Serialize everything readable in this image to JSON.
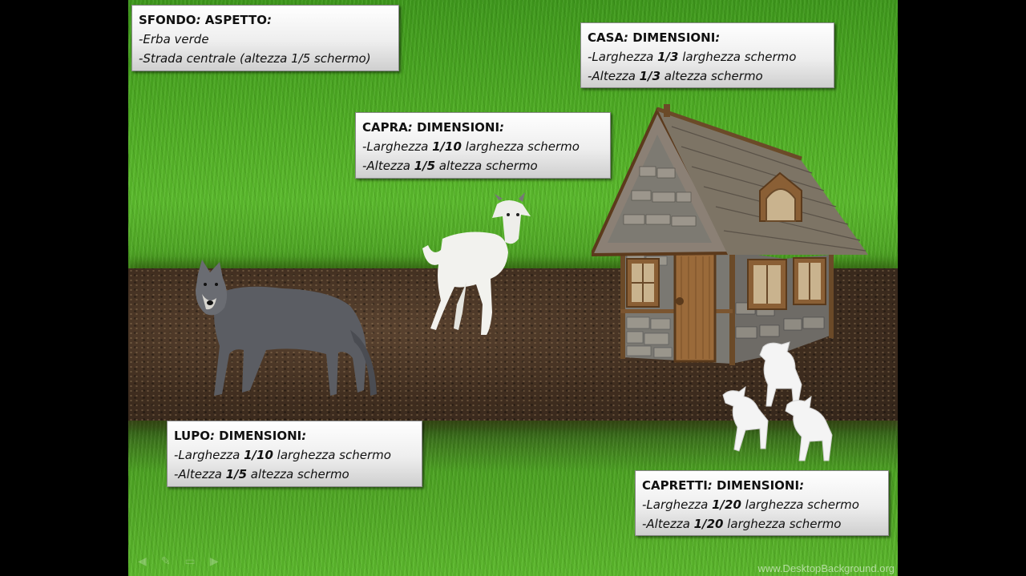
{
  "labels": {
    "sfondo": {
      "title_main": "SFONDO",
      "title_colon": ":",
      "title_rest": " ASPETTO",
      "title_end": ":",
      "line1": "-Erba verde",
      "line2": "-Strada centrale (altezza 1/5 schermo)"
    },
    "casa": {
      "title_main": "CASA",
      "title_colon": ":",
      "title_rest": " DIMENSIONI",
      "title_end": ":",
      "l1_pre": "-Larghezza ",
      "l1_val": "1/3",
      "l1_post": "  larghezza schermo",
      "l2_pre": "-Altezza ",
      "l2_val": "1/3",
      "l2_post": " altezza schermo"
    },
    "capra": {
      "title_main": "CAPRA",
      "title_colon": ":",
      "title_rest": " DIMENSIONI",
      "title_end": ":",
      "l1_pre": "-Larghezza ",
      "l1_val": "1/10",
      "l1_post": "  larghezza schermo",
      "l2_pre": "-Altezza ",
      "l2_val": "1/5",
      "l2_post": " altezza schermo"
    },
    "lupo": {
      "title_main": "LUPO",
      "title_colon": ":",
      "title_rest": " DIMENSIONI",
      "title_end": ":",
      "l1_pre": "-Larghezza ",
      "l1_val": "1/10",
      "l1_post": "  larghezza schermo",
      "l2_pre": "-Altezza ",
      "l2_val": "1/5",
      "l2_post": " altezza schermo"
    },
    "capretti": {
      "title_main": "CAPRETTI",
      "title_colon": ":",
      "title_rest": " DIMENSIONI",
      "title_end": ":",
      "l1_pre": "-Larghezza ",
      "l1_val": "1/20",
      "l1_post": "  larghezza schermo",
      "l2_pre": "-Altezza ",
      "l2_val": "1/20",
      "l2_post": " larghezza schermo"
    }
  },
  "watermark": "www.DesktopBackground.org",
  "icons": [
    "wolf-image-icon",
    "goat-image-icon",
    "house-image-icon",
    "kids-image-icon"
  ]
}
